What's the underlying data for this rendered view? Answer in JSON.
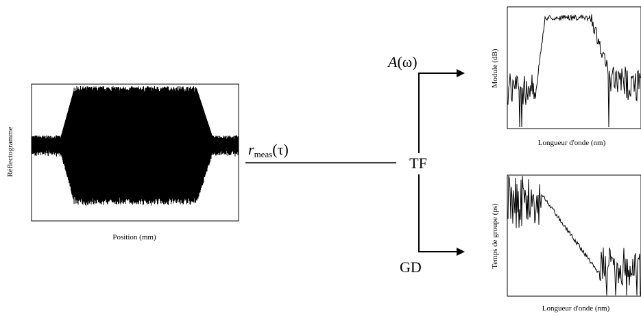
{
  "reflectogram": {
    "ylabel": "Réflectogramme",
    "xlabel": "Position (mm)"
  },
  "signal": {
    "label_var": "r",
    "label_sub": "meas",
    "label_arg": "(τ)"
  },
  "transform": {
    "label": "TF"
  },
  "amplitude": {
    "label_var": "A",
    "label_arg": "(ω)",
    "ylabel": "Module (dB)",
    "xlabel": "Longueur d'onde (nm)"
  },
  "group_delay": {
    "label": "GD",
    "ylabel": "Temps de groupe (ps)",
    "xlabel": "Longueur d'onde (nm)"
  }
}
